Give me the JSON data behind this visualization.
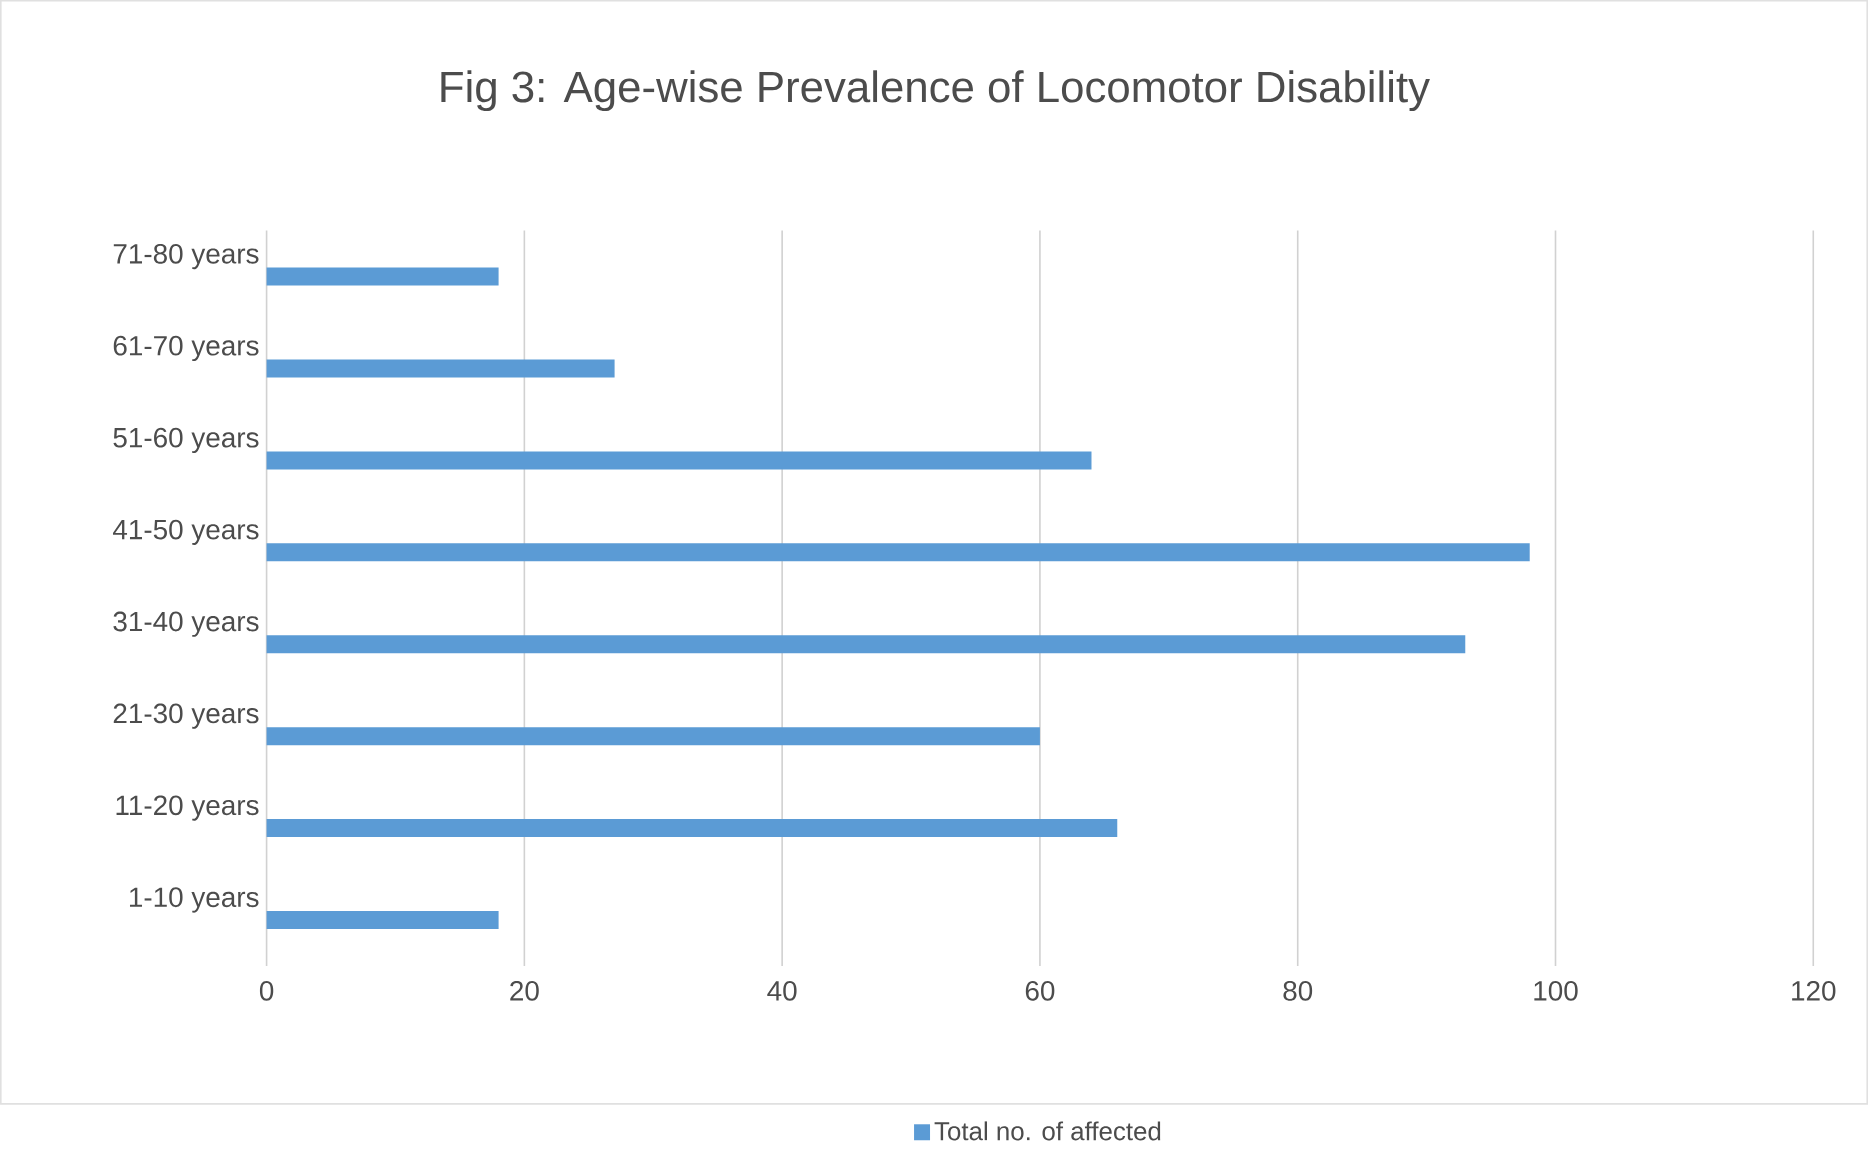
{
  "chart_data": {
    "type": "bar",
    "orientation": "horizontal",
    "title": "Fig 3: Age-wise Prevalence of Locomotor Disability",
    "categories": [
      "71-80 years",
      "61-70 years",
      "51-60 years",
      "41-50 years",
      "31-40 years",
      "21-30 years",
      "11-20 years",
      "1-10 years"
    ],
    "series": [
      {
        "name": "Total no. of affected",
        "color": "#5b9bd5",
        "values": [
          18,
          27,
          64,
          98,
          93,
          60,
          66,
          18
        ]
      }
    ],
    "xlim": [
      0,
      120
    ],
    "xticks": [
      0,
      20,
      40,
      60,
      80,
      100,
      120
    ],
    "grid": "x",
    "legend": "bottom"
  }
}
